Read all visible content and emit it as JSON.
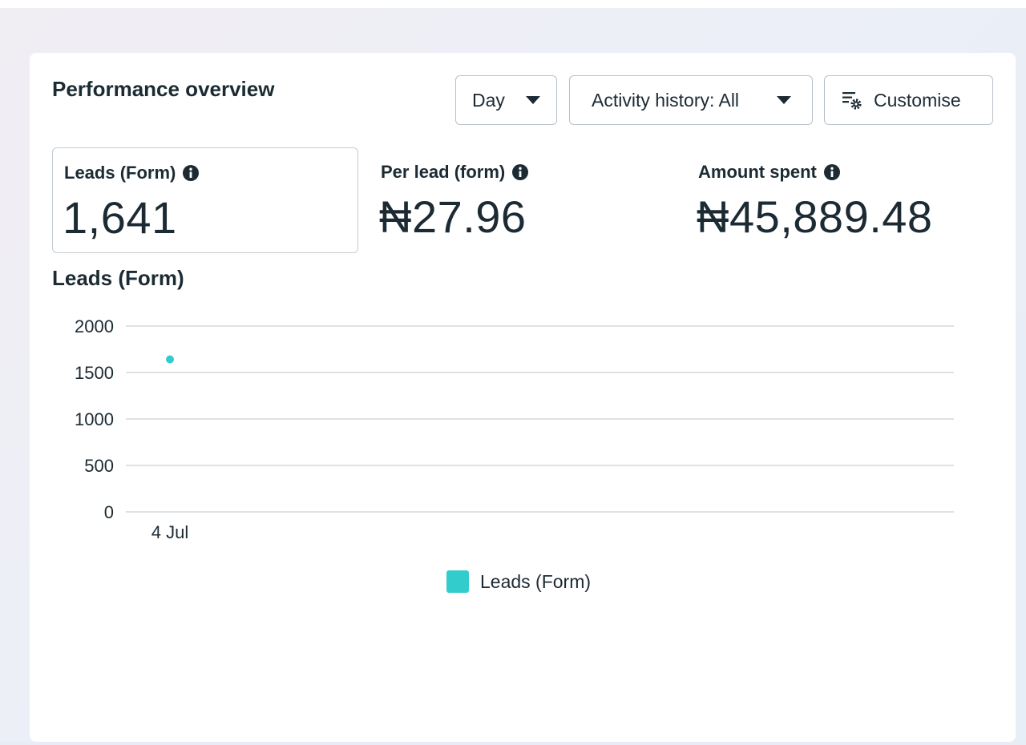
{
  "header": {
    "title": "Performance overview"
  },
  "toolbar": {
    "day_label": "Day",
    "activity_label": "Activity history: All",
    "customise_label": "Customise"
  },
  "metrics": [
    {
      "label": "Leads (Form)",
      "value": "1,641",
      "selected": true
    },
    {
      "label": "Per lead (form)",
      "value": "₦27.96",
      "selected": false
    },
    {
      "label": "Amount spent",
      "value": "₦45,889.48",
      "selected": false
    }
  ],
  "icons": {
    "info": "info-icon",
    "customise": "filter-settings-icon",
    "dropdown": "chevron-down-icon"
  },
  "chart": {
    "title": "Leads (Form)"
  },
  "chart_data": {
    "type": "scatter",
    "title": "Leads (Form)",
    "xlabel": "",
    "ylabel": "",
    "categories": [
      "4 Jul"
    ],
    "series": [
      {
        "name": "Leads (Form)",
        "values": [
          1641
        ],
        "color": "#33cccc"
      }
    ],
    "ylim": [
      0,
      2000
    ],
    "yticks": [
      0,
      500,
      1000,
      1500,
      2000
    ],
    "grid": true,
    "legend": "bottom-center"
  },
  "legend": {
    "label": "Leads (Form)",
    "color": "#33cccc"
  }
}
